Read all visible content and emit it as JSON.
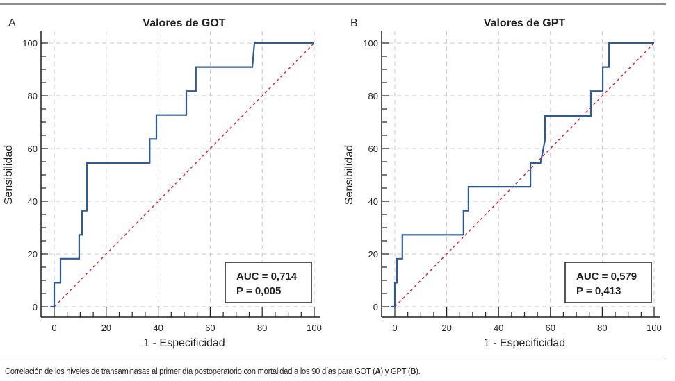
{
  "caption": {
    "text_1": "Correlación de los niveles de transaminasas al primer día postoperatorio con mortalidad a los 90 días para GOT (",
    "a": "A",
    "text_2": ") y GPT (",
    "b": "B",
    "text_3": ")."
  },
  "colors": {
    "roc_line": "#2e5a97",
    "reference_line": "#e0202c",
    "grid": "#c8c8c8",
    "axis": "#231f20"
  },
  "chart_data": [
    {
      "type": "line",
      "panel_label": "A",
      "title": "Valores de GOT",
      "xlabel": "1 - Especificidad",
      "ylabel": "Sensibilidad",
      "xlim": [
        0,
        100
      ],
      "ylim": [
        0,
        100
      ],
      "xticks": [
        0,
        20,
        40,
        60,
        80,
        100
      ],
      "yticks": [
        0,
        20,
        40,
        60,
        80,
        100
      ],
      "grid": true,
      "annotation": {
        "line1": "AUC = 0,714",
        "line2": "P = 0,005",
        "position": "bottom-right"
      },
      "series": [
        {
          "name": "ROC",
          "x": [
            -1.5,
            0,
            0,
            2.4,
            2.4,
            9.6,
            9.6,
            10.7,
            10.7,
            12.6,
            12.6,
            36.7,
            36.7,
            39.3,
            39.3,
            50.8,
            50.8,
            54.5,
            54.5,
            76.2,
            77.0,
            100
          ],
          "y": [
            0,
            0,
            9.1,
            9.1,
            18.2,
            18.2,
            27.3,
            27.3,
            36.4,
            36.4,
            54.5,
            54.5,
            63.6,
            63.6,
            72.7,
            72.7,
            81.8,
            81.8,
            90.9,
            90.9,
            100,
            100
          ]
        },
        {
          "name": "Reference",
          "x": [
            0,
            100
          ],
          "y": [
            0,
            100
          ]
        }
      ]
    },
    {
      "type": "line",
      "panel_label": "B",
      "title": "Valores de GPT",
      "xlabel": "1 - Especificidad",
      "ylabel": "Sensibilidad",
      "xlim": [
        0,
        100
      ],
      "ylim": [
        0,
        100
      ],
      "xticks": [
        0,
        20,
        40,
        60,
        80,
        100
      ],
      "yticks": [
        0,
        20,
        40,
        60,
        80,
        100
      ],
      "grid": true,
      "annotation": {
        "line1": "AUC = 0,579",
        "line2": "P = 0,413",
        "position": "bottom-right"
      },
      "series": [
        {
          "name": "ROC",
          "x": [
            -1.5,
            0,
            0,
            0.8,
            0.8,
            2.9,
            2.9,
            26.5,
            26.5,
            28.4,
            28.4,
            52.3,
            52.3,
            56.2,
            57.9,
            57.9,
            75.6,
            75.6,
            80.2,
            80.2,
            82.6,
            82.6,
            100
          ],
          "y": [
            0,
            0,
            9.1,
            9.1,
            18.2,
            18.2,
            27.3,
            27.3,
            36.4,
            36.4,
            45.5,
            45.5,
            54.5,
            54.5,
            63.2,
            72.4,
            72.4,
            81.8,
            81.8,
            90.9,
            90.9,
            100,
            100
          ]
        },
        {
          "name": "Reference",
          "x": [
            0,
            100
          ],
          "y": [
            0,
            100
          ]
        }
      ]
    }
  ]
}
